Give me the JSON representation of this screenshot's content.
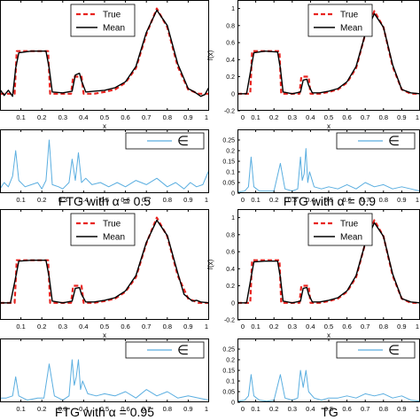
{
  "chart_data": [
    {
      "type": "line",
      "caption": "",
      "xlabel": "x",
      "ylabel": "",
      "xlim": [
        0,
        1
      ],
      "ylim": [
        -0.2,
        1.1
      ],
      "xticks": [
        0.1,
        0.2,
        0.3,
        0.4,
        0.5,
        0.6,
        0.7,
        0.8,
        0.9,
        1
      ],
      "xtick_labels": [
        "0.1",
        "0.2",
        "0.3",
        "0.4",
        "0.5",
        "0.6",
        "0.7",
        "0.8",
        "0.9",
        "1"
      ],
      "yticks": [],
      "ytick_labels": [],
      "legend": [
        "True",
        "Mean"
      ],
      "series": [
        {
          "name": "True",
          "color": "#e8231f",
          "style": "dashed",
          "x": [
            0,
            0.03,
            0.07,
            0.08,
            0.23,
            0.24,
            0.34,
            0.35,
            0.39,
            0.4,
            0.45,
            0.5,
            0.55,
            0.6,
            0.65,
            0.7,
            0.75,
            0.8,
            0.85,
            0.9,
            0.95,
            1
          ],
          "y": [
            0,
            0,
            0,
            0.5,
            0.5,
            0,
            0,
            0.2,
            0.2,
            0,
            0,
            0.02,
            0.05,
            0.13,
            0.3,
            0.7,
            1,
            0.78,
            0.32,
            0.05,
            0,
            0
          ]
        },
        {
          "name": "Mean",
          "color": "#000000",
          "style": "solid",
          "x": [
            0,
            0.02,
            0.04,
            0.06,
            0.075,
            0.09,
            0.15,
            0.22,
            0.235,
            0.25,
            0.3,
            0.345,
            0.36,
            0.38,
            0.39,
            0.41,
            0.45,
            0.5,
            0.55,
            0.6,
            0.65,
            0.7,
            0.75,
            0.8,
            0.85,
            0.9,
            0.93,
            0.96,
            0.98,
            1
          ],
          "y": [
            0.05,
            -0.02,
            0.04,
            -0.03,
            0.3,
            0.48,
            0.5,
            0.5,
            0.3,
            0.02,
            0.01,
            0.03,
            0.22,
            0.24,
            0.15,
            0.02,
            0.03,
            0.04,
            0.07,
            0.14,
            0.32,
            0.72,
            0.98,
            0.8,
            0.35,
            0.06,
            0.02,
            -0.03,
            -0.01,
            0.08
          ]
        }
      ]
    },
    {
      "type": "line",
      "caption": "",
      "xlabel": "x",
      "ylabel": "f(x)",
      "xlim": [
        0,
        1
      ],
      "ylim": [
        -0.2,
        1.1
      ],
      "xticks": [
        0,
        0.1,
        0.2,
        0.3,
        0.4,
        0.5,
        0.6,
        0.7,
        0.8,
        0.9,
        1
      ],
      "xtick_labels": [
        "0",
        "0.1",
        "0.2",
        "0.3",
        "0.4",
        "0.5",
        "0.6",
        "0.7",
        "0.8",
        "0.9",
        "1"
      ],
      "yticks": [
        -0.2,
        0,
        0.2,
        0.4,
        0.6,
        0.8,
        1
      ],
      "ytick_labels": [
        "-0.2",
        "0",
        "0.2",
        "0.4",
        "0.6",
        "0.8",
        "1"
      ],
      "legend": [
        "True",
        "Mean"
      ],
      "series": [
        {
          "name": "True",
          "color": "#e8231f",
          "style": "dashed",
          "x": [
            0,
            0.07,
            0.08,
            0.23,
            0.24,
            0.34,
            0.35,
            0.39,
            0.4,
            0.45,
            0.5,
            0.55,
            0.6,
            0.65,
            0.7,
            0.75,
            0.8,
            0.85,
            0.9,
            0.95,
            1
          ],
          "y": [
            0,
            0,
            0.5,
            0.5,
            0,
            0,
            0.2,
            0.2,
            0,
            0,
            0.02,
            0.05,
            0.13,
            0.3,
            0.7,
            0.97,
            0.78,
            0.32,
            0.05,
            0,
            0
          ]
        },
        {
          "name": "Mean",
          "color": "#000000",
          "style": "solid",
          "x": [
            0,
            0.05,
            0.075,
            0.09,
            0.15,
            0.22,
            0.235,
            0.25,
            0.3,
            0.345,
            0.36,
            0.38,
            0.39,
            0.41,
            0.45,
            0.5,
            0.55,
            0.6,
            0.65,
            0.7,
            0.75,
            0.8,
            0.85,
            0.9,
            0.95,
            1
          ],
          "y": [
            0,
            0,
            0.3,
            0.48,
            0.5,
            0.49,
            0.3,
            0.02,
            0,
            0.02,
            0.16,
            0.17,
            0.1,
            0.01,
            0.01,
            0.03,
            0.06,
            0.14,
            0.32,
            0.7,
            0.94,
            0.78,
            0.34,
            0.05,
            0.01,
            0
          ]
        }
      ]
    },
    {
      "type": "line",
      "caption": "FTG with α = 0.5",
      "xlabel": "",
      "ylabel": "",
      "xlim": [
        0,
        1
      ],
      "ylim": [
        0,
        0.3
      ],
      "xticks": [
        0.1,
        0.2,
        0.3,
        0.4,
        0.5,
        0.6,
        0.7,
        0.8,
        0.9,
        1
      ],
      "xtick_labels": [
        "0.1",
        "0.2",
        "0.3",
        "0.4",
        "0.5",
        "0.6",
        "0.7",
        "0.8",
        "0.9",
        "1"
      ],
      "yticks": [],
      "ytick_labels": [],
      "legend": [
        "∈"
      ],
      "series": [
        {
          "name": "∈",
          "color": "#5aaee0",
          "style": "solid",
          "x": [
            0,
            0.02,
            0.04,
            0.06,
            0.075,
            0.09,
            0.12,
            0.15,
            0.18,
            0.2,
            0.22,
            0.235,
            0.25,
            0.28,
            0.3,
            0.33,
            0.345,
            0.36,
            0.375,
            0.39,
            0.41,
            0.44,
            0.48,
            0.52,
            0.56,
            0.6,
            0.65,
            0.7,
            0.75,
            0.8,
            0.84,
            0.88,
            0.91,
            0.94,
            0.97,
            1
          ],
          "y": [
            0.02,
            0.05,
            0.03,
            0.08,
            0.2,
            0.06,
            0.03,
            0.04,
            0.05,
            0.02,
            0.06,
            0.25,
            0.04,
            0.03,
            0.02,
            0.05,
            0.16,
            0.06,
            0.19,
            0.05,
            0.07,
            0.04,
            0.05,
            0.03,
            0.05,
            0.03,
            0.06,
            0.04,
            0.07,
            0.03,
            0.05,
            0.02,
            0.05,
            0.03,
            0.04,
            0.11
          ]
        }
      ]
    },
    {
      "type": "line",
      "caption": "FTG with α = 0.9",
      "xlabel": "",
      "ylabel": "",
      "xlim": [
        0,
        1
      ],
      "ylim": [
        0,
        0.3
      ],
      "xticks": [
        0,
        0.1,
        0.2,
        0.3,
        0.4,
        0.5,
        0.6,
        0.7,
        0.8,
        0.9,
        1
      ],
      "xtick_labels": [
        "0",
        "0.1",
        "0.2",
        "0.3",
        "0.4",
        "0.5",
        "0.6",
        "0.7",
        "0.8",
        "0.9",
        "1"
      ],
      "yticks": [
        0,
        0.05,
        0.1,
        0.15,
        0.2,
        0.25
      ],
      "ytick_labels": [
        "0",
        "0.05",
        "0.1",
        "0.15",
        "0.2",
        "0.25"
      ],
      "legend": [
        "∈"
      ],
      "series": [
        {
          "name": "∈",
          "color": "#5aaee0",
          "style": "solid",
          "x": [
            0,
            0.04,
            0.06,
            0.075,
            0.09,
            0.12,
            0.15,
            0.2,
            0.235,
            0.26,
            0.3,
            0.33,
            0.345,
            0.355,
            0.365,
            0.375,
            0.385,
            0.395,
            0.42,
            0.46,
            0.5,
            0.55,
            0.6,
            0.65,
            0.7,
            0.75,
            0.8,
            0.85,
            0.9,
            0.95,
            1
          ],
          "y": [
            0.005,
            0.01,
            0.03,
            0.17,
            0.03,
            0.01,
            0.01,
            0.01,
            0.14,
            0.02,
            0.01,
            0.02,
            0.17,
            0.06,
            0.09,
            0.21,
            0.05,
            0.1,
            0.03,
            0.02,
            0.03,
            0.02,
            0.04,
            0.02,
            0.05,
            0.03,
            0.04,
            0.02,
            0.03,
            0.02,
            0.01
          ]
        }
      ]
    },
    {
      "type": "line",
      "caption": "",
      "xlabel": "x",
      "ylabel": "",
      "xlim": [
        0,
        1
      ],
      "ylim": [
        -0.2,
        1.1
      ],
      "xticks": [
        0.1,
        0.2,
        0.3,
        0.4,
        0.5,
        0.6,
        0.7,
        0.8,
        0.9,
        1
      ],
      "xtick_labels": [
        "0.1",
        "0.2",
        "0.3",
        "0.4",
        "0.5",
        "0.6",
        "0.7",
        "0.8",
        "0.9",
        "1"
      ],
      "yticks": [],
      "ytick_labels": [],
      "legend": [
        "True",
        "Mean"
      ],
      "series": [
        {
          "name": "True",
          "color": "#e8231f",
          "style": "dashed",
          "x": [
            0,
            0.07,
            0.08,
            0.23,
            0.24,
            0.34,
            0.35,
            0.39,
            0.4,
            0.45,
            0.5,
            0.55,
            0.6,
            0.65,
            0.7,
            0.75,
            0.8,
            0.85,
            0.9,
            0.95,
            1
          ],
          "y": [
            0,
            0,
            0.5,
            0.5,
            0,
            0,
            0.2,
            0.2,
            0,
            0,
            0.02,
            0.05,
            0.13,
            0.3,
            0.7,
            1,
            0.78,
            0.32,
            0.05,
            0,
            0
          ]
        },
        {
          "name": "Mean",
          "color": "#000000",
          "style": "solid",
          "x": [
            0,
            0.05,
            0.075,
            0.09,
            0.15,
            0.22,
            0.235,
            0.25,
            0.3,
            0.345,
            0.36,
            0.38,
            0.39,
            0.41,
            0.45,
            0.5,
            0.55,
            0.6,
            0.65,
            0.7,
            0.75,
            0.8,
            0.85,
            0.88,
            0.9,
            0.92,
            0.94,
            0.96,
            1
          ],
          "y": [
            0,
            0,
            0.3,
            0.49,
            0.5,
            0.5,
            0.3,
            0.02,
            0,
            0.02,
            0.17,
            0.18,
            0.1,
            0.01,
            0.01,
            0.03,
            0.06,
            0.14,
            0.32,
            0.71,
            0.97,
            0.79,
            0.35,
            0.1,
            0.06,
            0.02,
            0.03,
            0.01,
            0
          ]
        }
      ]
    },
    {
      "type": "line",
      "caption": "",
      "xlabel": "x",
      "ylabel": "f(x)",
      "xlim": [
        0,
        1
      ],
      "ylim": [
        -0.2,
        1.1
      ],
      "xticks": [
        0,
        0.1,
        0.2,
        0.3,
        0.4,
        0.5,
        0.6,
        0.7,
        0.8,
        0.9,
        1
      ],
      "xtick_labels": [
        "0",
        "0.1",
        "0.2",
        "0.3",
        "0.4",
        "0.5",
        "0.6",
        "0.7",
        "0.8",
        "0.9",
        "1"
      ],
      "yticks": [
        -0.2,
        0,
        0.2,
        0.4,
        0.6,
        0.8,
        1
      ],
      "ytick_labels": [
        "-0.2",
        "0",
        "0.2",
        "0.4",
        "0.6",
        "0.8",
        "1"
      ],
      "legend": [
        "True",
        "Mean"
      ],
      "series": [
        {
          "name": "True",
          "color": "#e8231f",
          "style": "dashed",
          "x": [
            0,
            0.07,
            0.08,
            0.23,
            0.24,
            0.34,
            0.35,
            0.39,
            0.4,
            0.45,
            0.5,
            0.55,
            0.6,
            0.65,
            0.7,
            0.75,
            0.8,
            0.85,
            0.9,
            0.95,
            1
          ],
          "y": [
            0,
            0,
            0.5,
            0.5,
            0,
            0,
            0.2,
            0.2,
            0,
            0,
            0.02,
            0.05,
            0.13,
            0.3,
            0.7,
            0.97,
            0.78,
            0.32,
            0.05,
            0,
            0
          ]
        },
        {
          "name": "Mean",
          "color": "#000000",
          "style": "solid",
          "x": [
            0,
            0.05,
            0.075,
            0.09,
            0.15,
            0.22,
            0.235,
            0.25,
            0.3,
            0.345,
            0.36,
            0.38,
            0.39,
            0.41,
            0.45,
            0.5,
            0.55,
            0.6,
            0.65,
            0.7,
            0.75,
            0.8,
            0.85,
            0.9,
            0.95,
            1
          ],
          "y": [
            0,
            0,
            0.3,
            0.48,
            0.49,
            0.49,
            0.3,
            0.02,
            0,
            0.02,
            0.17,
            0.18,
            0.1,
            0.01,
            0.01,
            0.03,
            0.06,
            0.14,
            0.32,
            0.7,
            0.94,
            0.78,
            0.34,
            0.05,
            0.01,
            0
          ]
        }
      ]
    },
    {
      "type": "line",
      "caption": "FTG with α = 0.95",
      "xlabel": "",
      "ylabel": "",
      "xlim": [
        0,
        1
      ],
      "ylim": [
        0,
        0.3
      ],
      "xticks": [
        0.1,
        0.2,
        0.3,
        0.4,
        0.5,
        0.6,
        0.7,
        0.8,
        0.9,
        1
      ],
      "xtick_labels": [
        "0.1",
        "0.2",
        "0.3",
        "0.4",
        "0.5",
        "0.6",
        "0.7",
        "0.8",
        "0.9",
        "1"
      ],
      "yticks": [],
      "ytick_labels": [],
      "legend": [
        "∈"
      ],
      "series": [
        {
          "name": "∈",
          "color": "#5aaee0",
          "style": "solid",
          "x": [
            0,
            0.03,
            0.06,
            0.075,
            0.09,
            0.13,
            0.18,
            0.21,
            0.235,
            0.26,
            0.3,
            0.33,
            0.345,
            0.355,
            0.365,
            0.375,
            0.385,
            0.395,
            0.42,
            0.46,
            0.5,
            0.55,
            0.6,
            0.65,
            0.7,
            0.75,
            0.8,
            0.85,
            0.9,
            0.95,
            1
          ],
          "y": [
            0.02,
            0.02,
            0.03,
            0.12,
            0.03,
            0.01,
            0.02,
            0.02,
            0.18,
            0.03,
            0.01,
            0.03,
            0.2,
            0.08,
            0.12,
            0.2,
            0.06,
            0.1,
            0.04,
            0.03,
            0.04,
            0.03,
            0.05,
            0.02,
            0.06,
            0.03,
            0.05,
            0.02,
            0.03,
            0.02,
            0.01
          ]
        }
      ]
    },
    {
      "type": "line",
      "caption": "TG",
      "xlabel": "",
      "ylabel": "",
      "xlim": [
        0,
        1
      ],
      "ylim": [
        0,
        0.3
      ],
      "xticks": [
        0,
        0.1,
        0.2,
        0.3,
        0.4,
        0.5,
        0.6,
        0.7,
        0.8,
        0.9,
        1
      ],
      "xtick_labels": [
        "0",
        "0.1",
        "0.2",
        "0.3",
        "0.4",
        "0.5",
        "0.6",
        "0.7",
        "0.8",
        "0.9",
        "1"
      ],
      "yticks": [
        0,
        0.05,
        0.1,
        0.15,
        0.2,
        0.25
      ],
      "ytick_labels": [
        "0",
        "0.05",
        "0.1",
        "0.15",
        "0.2",
        "0.25"
      ],
      "legend": [
        "∈"
      ],
      "series": [
        {
          "name": "∈",
          "color": "#5aaee0",
          "style": "solid",
          "x": [
            0,
            0.04,
            0.06,
            0.075,
            0.09,
            0.12,
            0.16,
            0.2,
            0.235,
            0.26,
            0.3,
            0.33,
            0.345,
            0.36,
            0.375,
            0.39,
            0.42,
            0.46,
            0.5,
            0.55,
            0.6,
            0.65,
            0.7,
            0.75,
            0.8,
            0.85,
            0.9,
            0.95,
            1
          ],
          "y": [
            0.005,
            0.01,
            0.03,
            0.13,
            0.03,
            0.01,
            0.005,
            0.01,
            0.13,
            0.02,
            0.01,
            0.02,
            0.15,
            0.07,
            0.15,
            0.05,
            0.02,
            0.01,
            0.02,
            0.02,
            0.03,
            0.02,
            0.04,
            0.03,
            0.04,
            0.02,
            0.03,
            0.01,
            0.005
          ]
        }
      ]
    }
  ]
}
